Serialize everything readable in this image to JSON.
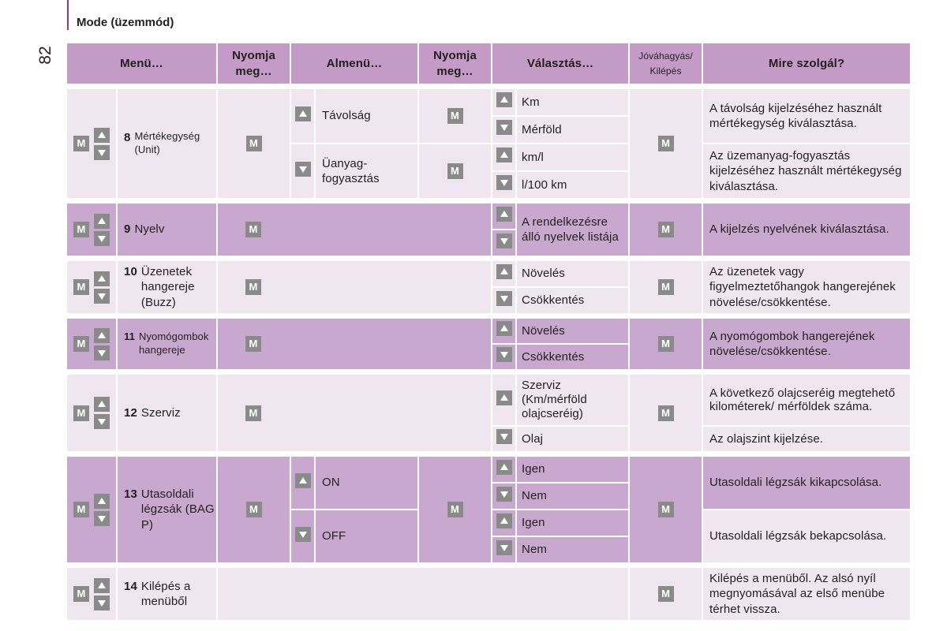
{
  "header": {
    "section_title": "Mode (üzemmód)",
    "page_number": "82"
  },
  "table": {
    "headers": {
      "menu": "Menü…",
      "press1": "Nyomja meg…",
      "submenu": "Almenü…",
      "press2": "Nyomja meg…",
      "choice": "Választás…",
      "confirm": "Jóváhagyás/ Kilépés",
      "purpose": "Mire szolgál?"
    },
    "m_key_label": "M",
    "rows": {
      "r8": {
        "num": "8",
        "label": "Mértékegység (Unit)",
        "sub1": "Távolság",
        "sub2": "Üanyag-fogyasztás",
        "opt1": "Km",
        "opt2": "Mérföld",
        "opt3": "km/l",
        "opt4": "l/100 km",
        "desc1": "A távolság kijelzéséhez használt mértékegység kiválasztása.",
        "desc2": "Az üzemanyag-fogyasztás kijelzéséhez használt mértékegység kiválasztása."
      },
      "r9": {
        "num": "9",
        "label": "Nyelv",
        "opt1": "A rendelkezésre álló nyelvek listája",
        "desc": "A kijelzés nyelvének kiválasztása."
      },
      "r10": {
        "num": "10",
        "label": "Üzenetek hangereje (Buzz)",
        "opt1": "Növelés",
        "opt2": "Csökkentés",
        "desc": "Az üzenetek vagy figyelmeztetőhangok hangerejének növelése/csökkentése."
      },
      "r11": {
        "num": "11",
        "label": "Nyomógombok hangereje",
        "opt1": "Növelés",
        "opt2": "Csökkentés",
        "desc": "A nyomógombok hangerejének növelése/csökkentése."
      },
      "r12": {
        "num": "12",
        "label": "Szerviz",
        "opt1": "Szerviz (Km/mérföld olajcseréig)",
        "opt2": "Olaj",
        "desc1": "A következő olajcseréig megtehető kilométerek/ mérföldek száma.",
        "desc2": "Az olajszint kijelzése."
      },
      "r13": {
        "num": "13",
        "label": "Utasoldali légzsák (BAG P)",
        "sub1": "ON",
        "sub2": "OFF",
        "opt1": "Igen",
        "opt2": "Nem",
        "opt3": "Igen",
        "opt4": "Nem",
        "desc1": "Utasoldali légzsák kikapcsolása.",
        "desc2": "Utasoldali légzsák bekapcsolása."
      },
      "r14": {
        "num": "14",
        "label": "Kilépés a menüből",
        "desc": "Kilépés a menüből. Az alsó nyíl megnyomásával az első menübe térhet vissza."
      }
    }
  },
  "colors": {
    "header_bg": "#c39bc6",
    "light_row": "#efe6f0",
    "dark_row": "#c8a8ce",
    "key_gray": "#8a8a8a",
    "accent_line": "#8e3b8e"
  }
}
